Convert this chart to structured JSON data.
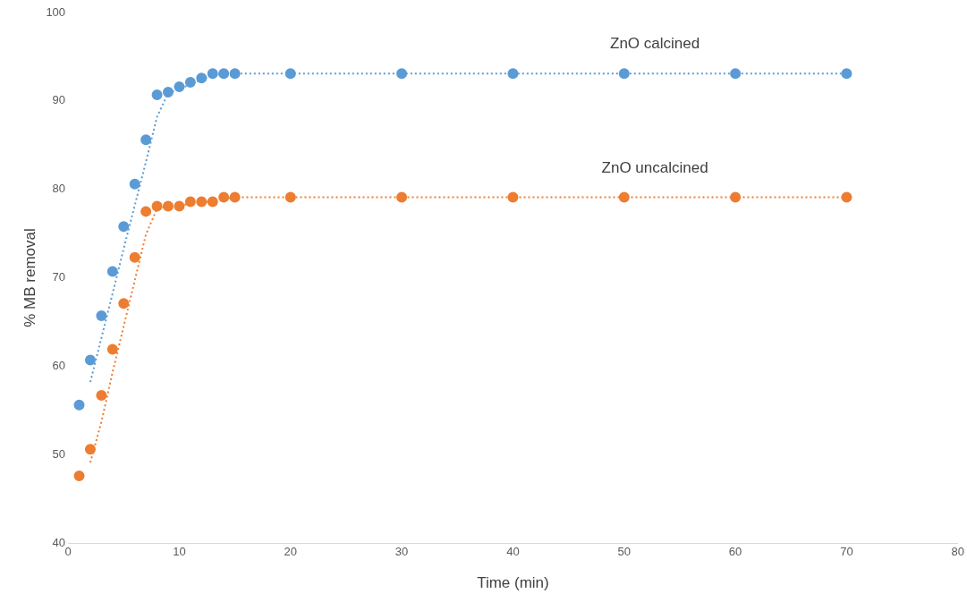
{
  "chart_data": {
    "type": "scatter",
    "xlabel": "Time (min)",
    "ylabel": "% MB removal",
    "xlim": [
      0,
      80
    ],
    "ylim": [
      40,
      100
    ],
    "xticks": [
      0,
      10,
      20,
      30,
      40,
      50,
      60,
      70,
      80
    ],
    "yticks": [
      40,
      50,
      60,
      70,
      80,
      90,
      100
    ],
    "grid": false,
    "legend": false,
    "series": [
      {
        "name": "ZnO calcined",
        "type": "scatter",
        "color": "#5b9bd5",
        "marker": "circle",
        "x": [
          1,
          2,
          3,
          4,
          5,
          6,
          7,
          8,
          9,
          10,
          11,
          12,
          13,
          14,
          15,
          20,
          30,
          40,
          50,
          60,
          70
        ],
        "values": [
          55.6,
          60.7,
          65.7,
          70.7,
          75.8,
          80.6,
          85.6,
          90.7,
          91.0,
          91.6,
          92.1,
          92.6,
          93.1,
          93.1,
          93.1,
          93.1,
          93.1,
          93.1,
          93.1,
          93.1,
          93.1
        ]
      },
      {
        "name": "ZnO uncalcined",
        "type": "scatter",
        "color": "#ed7d31",
        "marker": "circle",
        "x": [
          1,
          2,
          3,
          4,
          5,
          6,
          7,
          8,
          9,
          10,
          11,
          12,
          13,
          14,
          15,
          20,
          30,
          40,
          50,
          60,
          70
        ],
        "values": [
          47.6,
          50.6,
          56.7,
          61.9,
          67.1,
          72.3,
          77.5,
          78.1,
          78.1,
          78.1,
          78.6,
          78.6,
          78.6,
          79.1,
          79.1,
          79.1,
          79.1,
          79.1,
          79.1,
          79.1,
          79.1
        ]
      },
      {
        "type": "line",
        "color": "#5b9bd5",
        "marker": "none",
        "line_style": "dotted",
        "x": [
          2,
          3,
          4,
          5,
          6,
          7,
          8,
          9,
          10,
          11,
          12,
          13,
          14,
          15,
          20,
          30,
          40,
          50,
          60,
          70
        ],
        "values": [
          58.2,
          63.2,
          68.2,
          73.3,
          78.2,
          83.1,
          88.2,
          90.9,
          91.3,
          91.9,
          92.4,
          92.9,
          93.1,
          93.1,
          93.1,
          93.1,
          93.1,
          93.1,
          93.1,
          93.1
        ]
      },
      {
        "type": "line",
        "color": "#ed7d31",
        "marker": "none",
        "line_style": "dotted",
        "x": [
          2,
          3,
          4,
          5,
          6,
          7,
          8,
          9,
          10,
          11,
          12,
          13,
          14,
          15,
          20,
          30,
          40,
          50,
          60,
          70
        ],
        "values": [
          49.1,
          53.7,
          59.3,
          64.5,
          69.7,
          74.9,
          77.8,
          78.1,
          78.1,
          78.4,
          78.6,
          78.6,
          78.9,
          79.1,
          79.1,
          79.1,
          79.1,
          79.1,
          79.1,
          79.1
        ]
      }
    ]
  }
}
